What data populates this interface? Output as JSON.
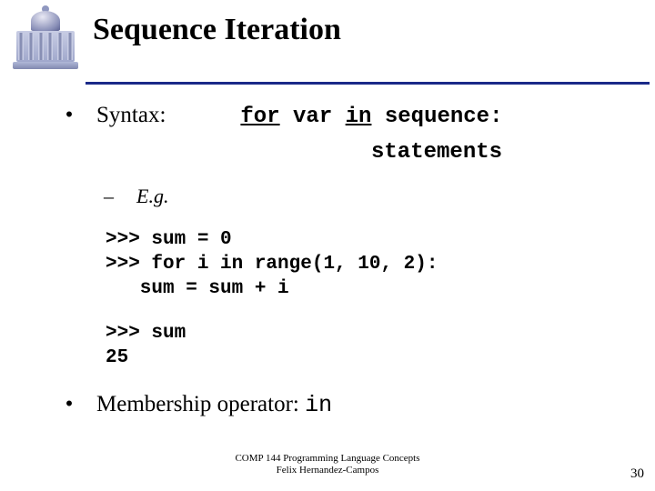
{
  "title": "Sequence Iteration",
  "rule_color": "#1a2a88",
  "bullet1": {
    "symbol": "•",
    "label": "Syntax:",
    "code_for": "for",
    "code_var": " var ",
    "code_in": "in",
    "code_seq": " sequence:",
    "statements": "statements"
  },
  "sub": {
    "dash": "–",
    "label": "E.g."
  },
  "code1": ">>> sum = 0\n>>> for i in range(1, 10, 2):\n   sum = sum + i",
  "code2": ">>> sum\n25",
  "bullet2": {
    "symbol": "•",
    "label": "Membership operator: ",
    "op": "in"
  },
  "footer": {
    "line1": "COMP 144 Programming Language Concepts",
    "line2": "Felix Hernandez-Campos"
  },
  "page": "30",
  "styling": {
    "background_color": "#ffffff",
    "title_fontsize": 34,
    "body_fontsize": 25,
    "sub_fontsize": 22,
    "code_fontsize": 21,
    "footer_fontsize": 11,
    "page_fontsize": 15,
    "code_font": "Courier New",
    "body_font": "Times New Roman",
    "logo_colors": [
      "#e8e8f4",
      "#8a90b8",
      "#5a6090",
      "#c8cde4"
    ]
  }
}
